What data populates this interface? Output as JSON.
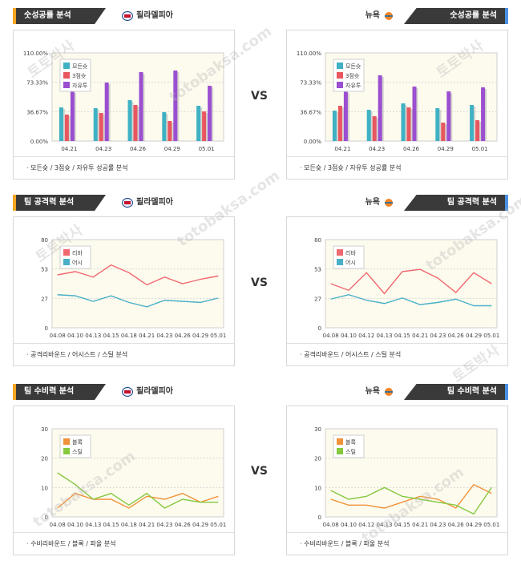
{
  "vs_label": "VS",
  "watermark": [
    "토토박사",
    "totobaksa.com"
  ],
  "teams": {
    "left": "필라델피아",
    "right": "뉴욕"
  },
  "panels": [
    {
      "id": "win-left",
      "title": "숫성공률 분석",
      "team": "필라델피아",
      "side": "left",
      "footer": "· 모든슛 / 3점슛 / 자유투 성공률 분석",
      "chart_data": {
        "type": "bar",
        "categories": [
          "04.21",
          "04.23",
          "04.26",
          "04.29",
          "05.01"
        ],
        "series": [
          {
            "name": "모든슛",
            "color": "#3fb1c4",
            "values": [
              42,
              41,
              51,
              36,
              44
            ]
          },
          {
            "name": "3점슛",
            "color": "#e8575f",
            "values": [
              33,
              35,
              45,
              25,
              37
            ]
          },
          {
            "name": "자유투",
            "color": "#9b4fd0",
            "values": [
              62,
              73,
              86,
              88,
              69
            ]
          }
        ],
        "yticks": [
          "0.00%",
          "36.67%",
          "73.33%",
          "110.00%"
        ],
        "ylim": [
          0,
          110
        ],
        "legend": "top-left"
      }
    },
    {
      "id": "win-right",
      "title": "숫성공률 분석",
      "team": "뉴욕",
      "side": "right",
      "footer": "· 모든슛 / 3점슛 / 자유투 성공률 분석",
      "chart_data": {
        "type": "bar",
        "categories": [
          "04.21",
          "04.23",
          "04.26",
          "04.29",
          "05.01"
        ],
        "series": [
          {
            "name": "모든슛",
            "color": "#3fb1c4",
            "values": [
              38,
              39,
              47,
              41,
              45
            ]
          },
          {
            "name": "3점슛",
            "color": "#e8575f",
            "values": [
              44,
              31,
              42,
              23,
              26
            ]
          },
          {
            "name": "자유투",
            "color": "#9b4fd0",
            "values": [
              62,
              82,
              68,
              62,
              67
            ]
          }
        ],
        "yticks": [
          "0.00%",
          "36.67%",
          "73.33%",
          "110.00%"
        ],
        "ylim": [
          0,
          110
        ],
        "legend": "top-left"
      }
    },
    {
      "id": "att-left",
      "title": "팀 공격력 분석",
      "team": "필라델피아",
      "side": "left",
      "footer": "· 공격리바운드 / 어시스트 / 스틸 분석",
      "chart_data": {
        "type": "line",
        "categories": [
          "04.08",
          "04.10",
          "04.13",
          "04.15",
          "04.18",
          "04.21",
          "04.23",
          "04.26",
          "04.29",
          "05.01"
        ],
        "series": [
          {
            "name": "리바",
            "color": "#f06870",
            "values": [
              48,
              51,
              46,
              57,
              50,
              39,
              46,
              40,
              44,
              47
            ]
          },
          {
            "name": "어시",
            "color": "#4ab0c8",
            "values": [
              30,
              29,
              24,
              29,
              23,
              19,
              25,
              24,
              23,
              27
            ]
          }
        ],
        "yticks": [
          "0",
          "27",
          "53",
          "80"
        ],
        "ylim": [
          0,
          80
        ],
        "legend": "top-left"
      }
    },
    {
      "id": "att-right",
      "title": "팀 공격력 분석",
      "team": "뉴욕",
      "side": "right",
      "footer": "· 공격리바운드 / 어시스트 / 스틸 분석",
      "chart_data": {
        "type": "line",
        "categories": [
          "04.08",
          "04.10",
          "04.12",
          "04.13",
          "04.15",
          "04.21",
          "04.23",
          "04.26",
          "04.29",
          "05.01"
        ],
        "series": [
          {
            "name": "리바",
            "color": "#f06870",
            "values": [
              40,
              34,
              50,
              31,
              51,
              53,
              45,
              32,
              50,
              40
            ]
          },
          {
            "name": "어시",
            "color": "#4ab0c8",
            "values": [
              26,
              30,
              25,
              22,
              27,
              21,
              23,
              26,
              20,
              20
            ]
          }
        ],
        "yticks": [
          "0",
          "27",
          "53",
          "80"
        ],
        "ylim": [
          0,
          80
        ],
        "legend": "top-left"
      }
    },
    {
      "id": "def-left",
      "title": "팀 수비력 분석",
      "team": "필라델피아",
      "side": "left",
      "footer": "· 수비리바운드 / 블록 / 파울 분석",
      "chart_data": {
        "type": "line",
        "categories": [
          "04.08",
          "04.10",
          "04.13",
          "04.15",
          "04.18",
          "04.21",
          "04.23",
          "04.26",
          "04.29",
          "05.01"
        ],
        "series": [
          {
            "name": "블록",
            "color": "#f0923a",
            "values": [
              3,
              8,
              6,
              6,
              3,
              7,
              6,
              8,
              5,
              7
            ]
          },
          {
            "name": "스틸",
            "color": "#86c840",
            "values": [
              15,
              11,
              6,
              8,
              4,
              8,
              3,
              6,
              5,
              5
            ]
          }
        ],
        "yticks": [
          "0",
          "10",
          "20",
          "30"
        ],
        "ylim": [
          0,
          30
        ],
        "legend": "top-left"
      }
    },
    {
      "id": "def-right",
      "title": "팀 수비력 분석",
      "team": "뉴욕",
      "side": "right",
      "footer": "· 수비리바운드 / 블록 / 파울 분석",
      "chart_data": {
        "type": "line",
        "categories": [
          "04.08",
          "04.10",
          "04.12",
          "04.13",
          "04.15",
          "04.21",
          "04.23",
          "04.26",
          "04.29",
          "05.01"
        ],
        "series": [
          {
            "name": "블록",
            "color": "#f0923a",
            "values": [
              6,
              4,
              4,
              3,
              5,
              7,
              6,
              3,
              11,
              8
            ]
          },
          {
            "name": "스틸",
            "color": "#86c840",
            "values": [
              9,
              6,
              7,
              10,
              7,
              6,
              5,
              4,
              1,
              10
            ]
          }
        ],
        "yticks": [
          "0",
          "10",
          "20",
          "30"
        ],
        "ylim": [
          0,
          30
        ],
        "legend": "top-left"
      }
    }
  ]
}
